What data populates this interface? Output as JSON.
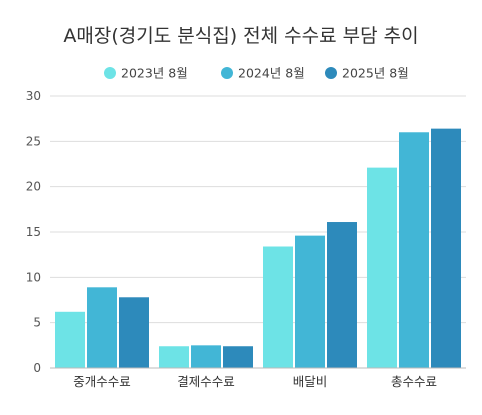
{
  "chart_data": {
    "type": "bar",
    "title": "A매장(경기도 분식집) 전체 수수료 부담 추이",
    "categories": [
      "중개수수료",
      "결제수수료",
      "배달비",
      "총수수료"
    ],
    "series": [
      {
        "name": "2023년 8월",
        "color": "#6de3e6",
        "values": [
          6.2,
          2.4,
          13.4,
          22.1
        ]
      },
      {
        "name": "2024년 8월",
        "color": "#42b6d6",
        "values": [
          8.9,
          2.5,
          14.6,
          26.0
        ]
      },
      {
        "name": "2025년 8월",
        "color": "#2d8abb",
        "values": [
          7.8,
          2.4,
          16.1,
          26.4
        ]
      }
    ],
    "ylim": [
      0,
      30
    ],
    "yticks": [
      "0",
      "5",
      "10",
      "15",
      "20",
      "25",
      "30"
    ],
    "grid": true,
    "legend": "top-center"
  }
}
